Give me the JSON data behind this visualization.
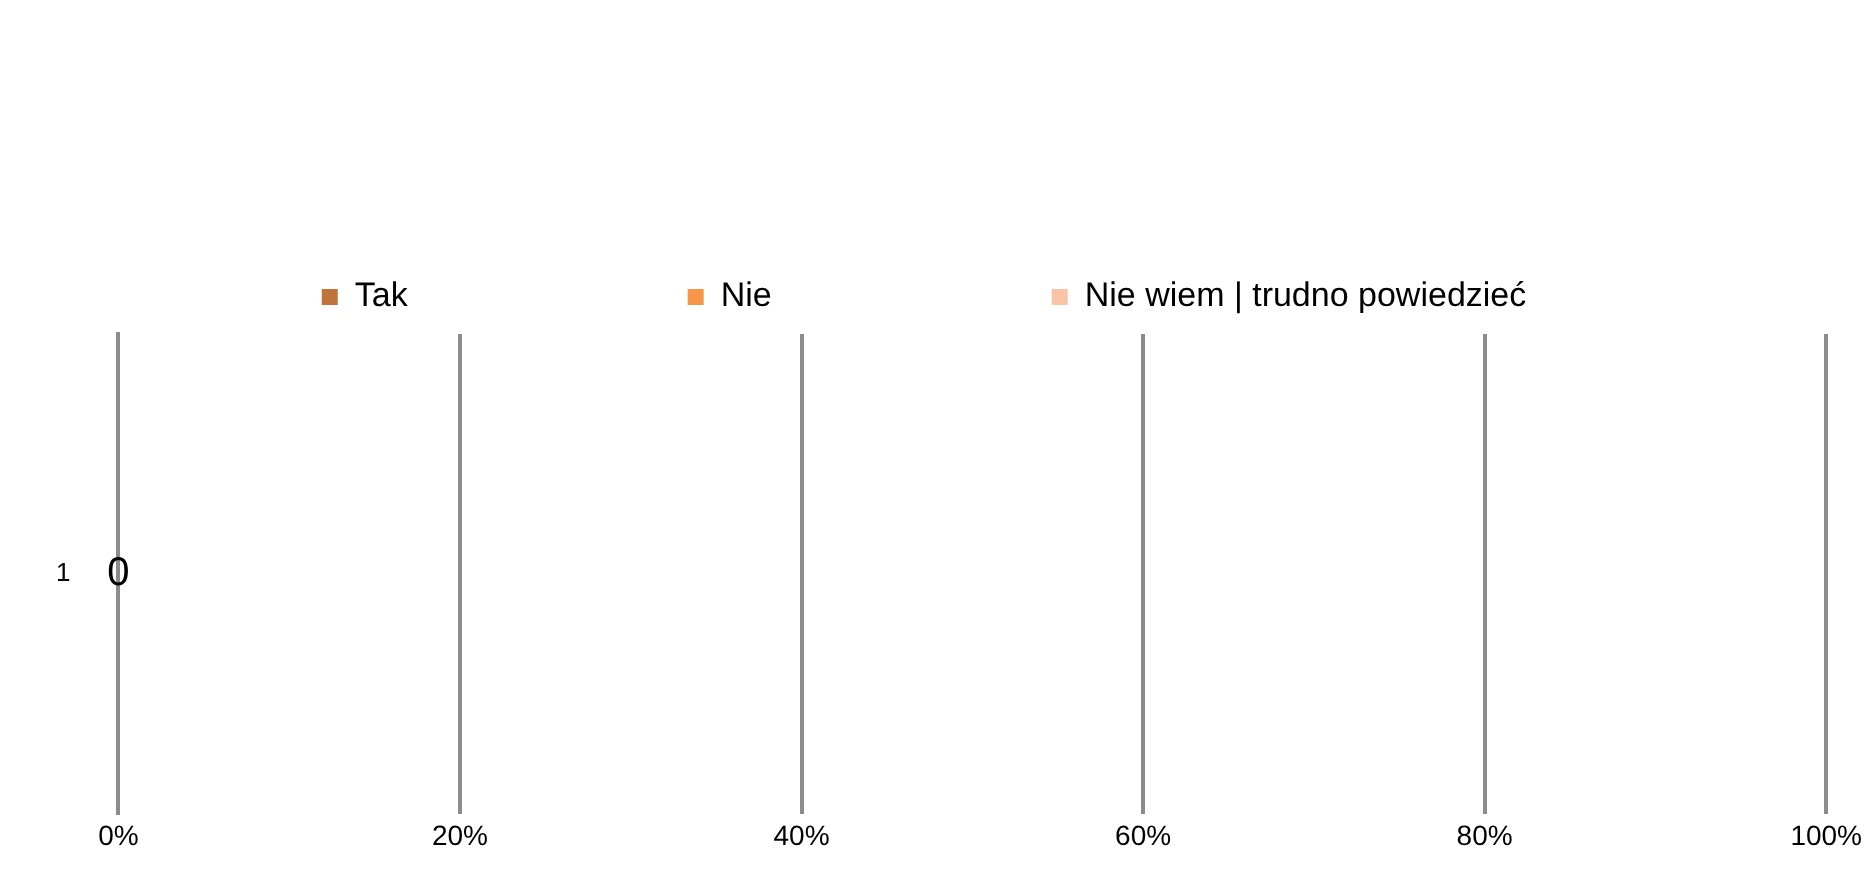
{
  "chart_data": {
    "type": "bar",
    "orientation": "horizontal",
    "stacked": true,
    "categories": [
      "1"
    ],
    "series": [
      {
        "name": "Tak",
        "color": "#c0733a",
        "values": [
          0
        ],
        "value_labels": [
          "0"
        ]
      },
      {
        "name": "Nie",
        "color": "#f79646",
        "values": [
          0
        ],
        "value_labels": [
          null
        ]
      },
      {
        "name": "Nie wiem | trudno powiedzieć",
        "color": "#f9c4a6",
        "values": [
          0
        ],
        "value_labels": [
          null
        ]
      }
    ],
    "xlim": [
      0,
      100
    ],
    "xticks": [
      {
        "value": 0,
        "label": "0%"
      },
      {
        "value": 20,
        "label": "20%"
      },
      {
        "value": 40,
        "label": "40%"
      },
      {
        "value": 60,
        "label": "60%"
      },
      {
        "value": 80,
        "label": "80%"
      },
      {
        "value": 100,
        "label": "100%"
      }
    ],
    "grid": "x",
    "legend": "top"
  }
}
